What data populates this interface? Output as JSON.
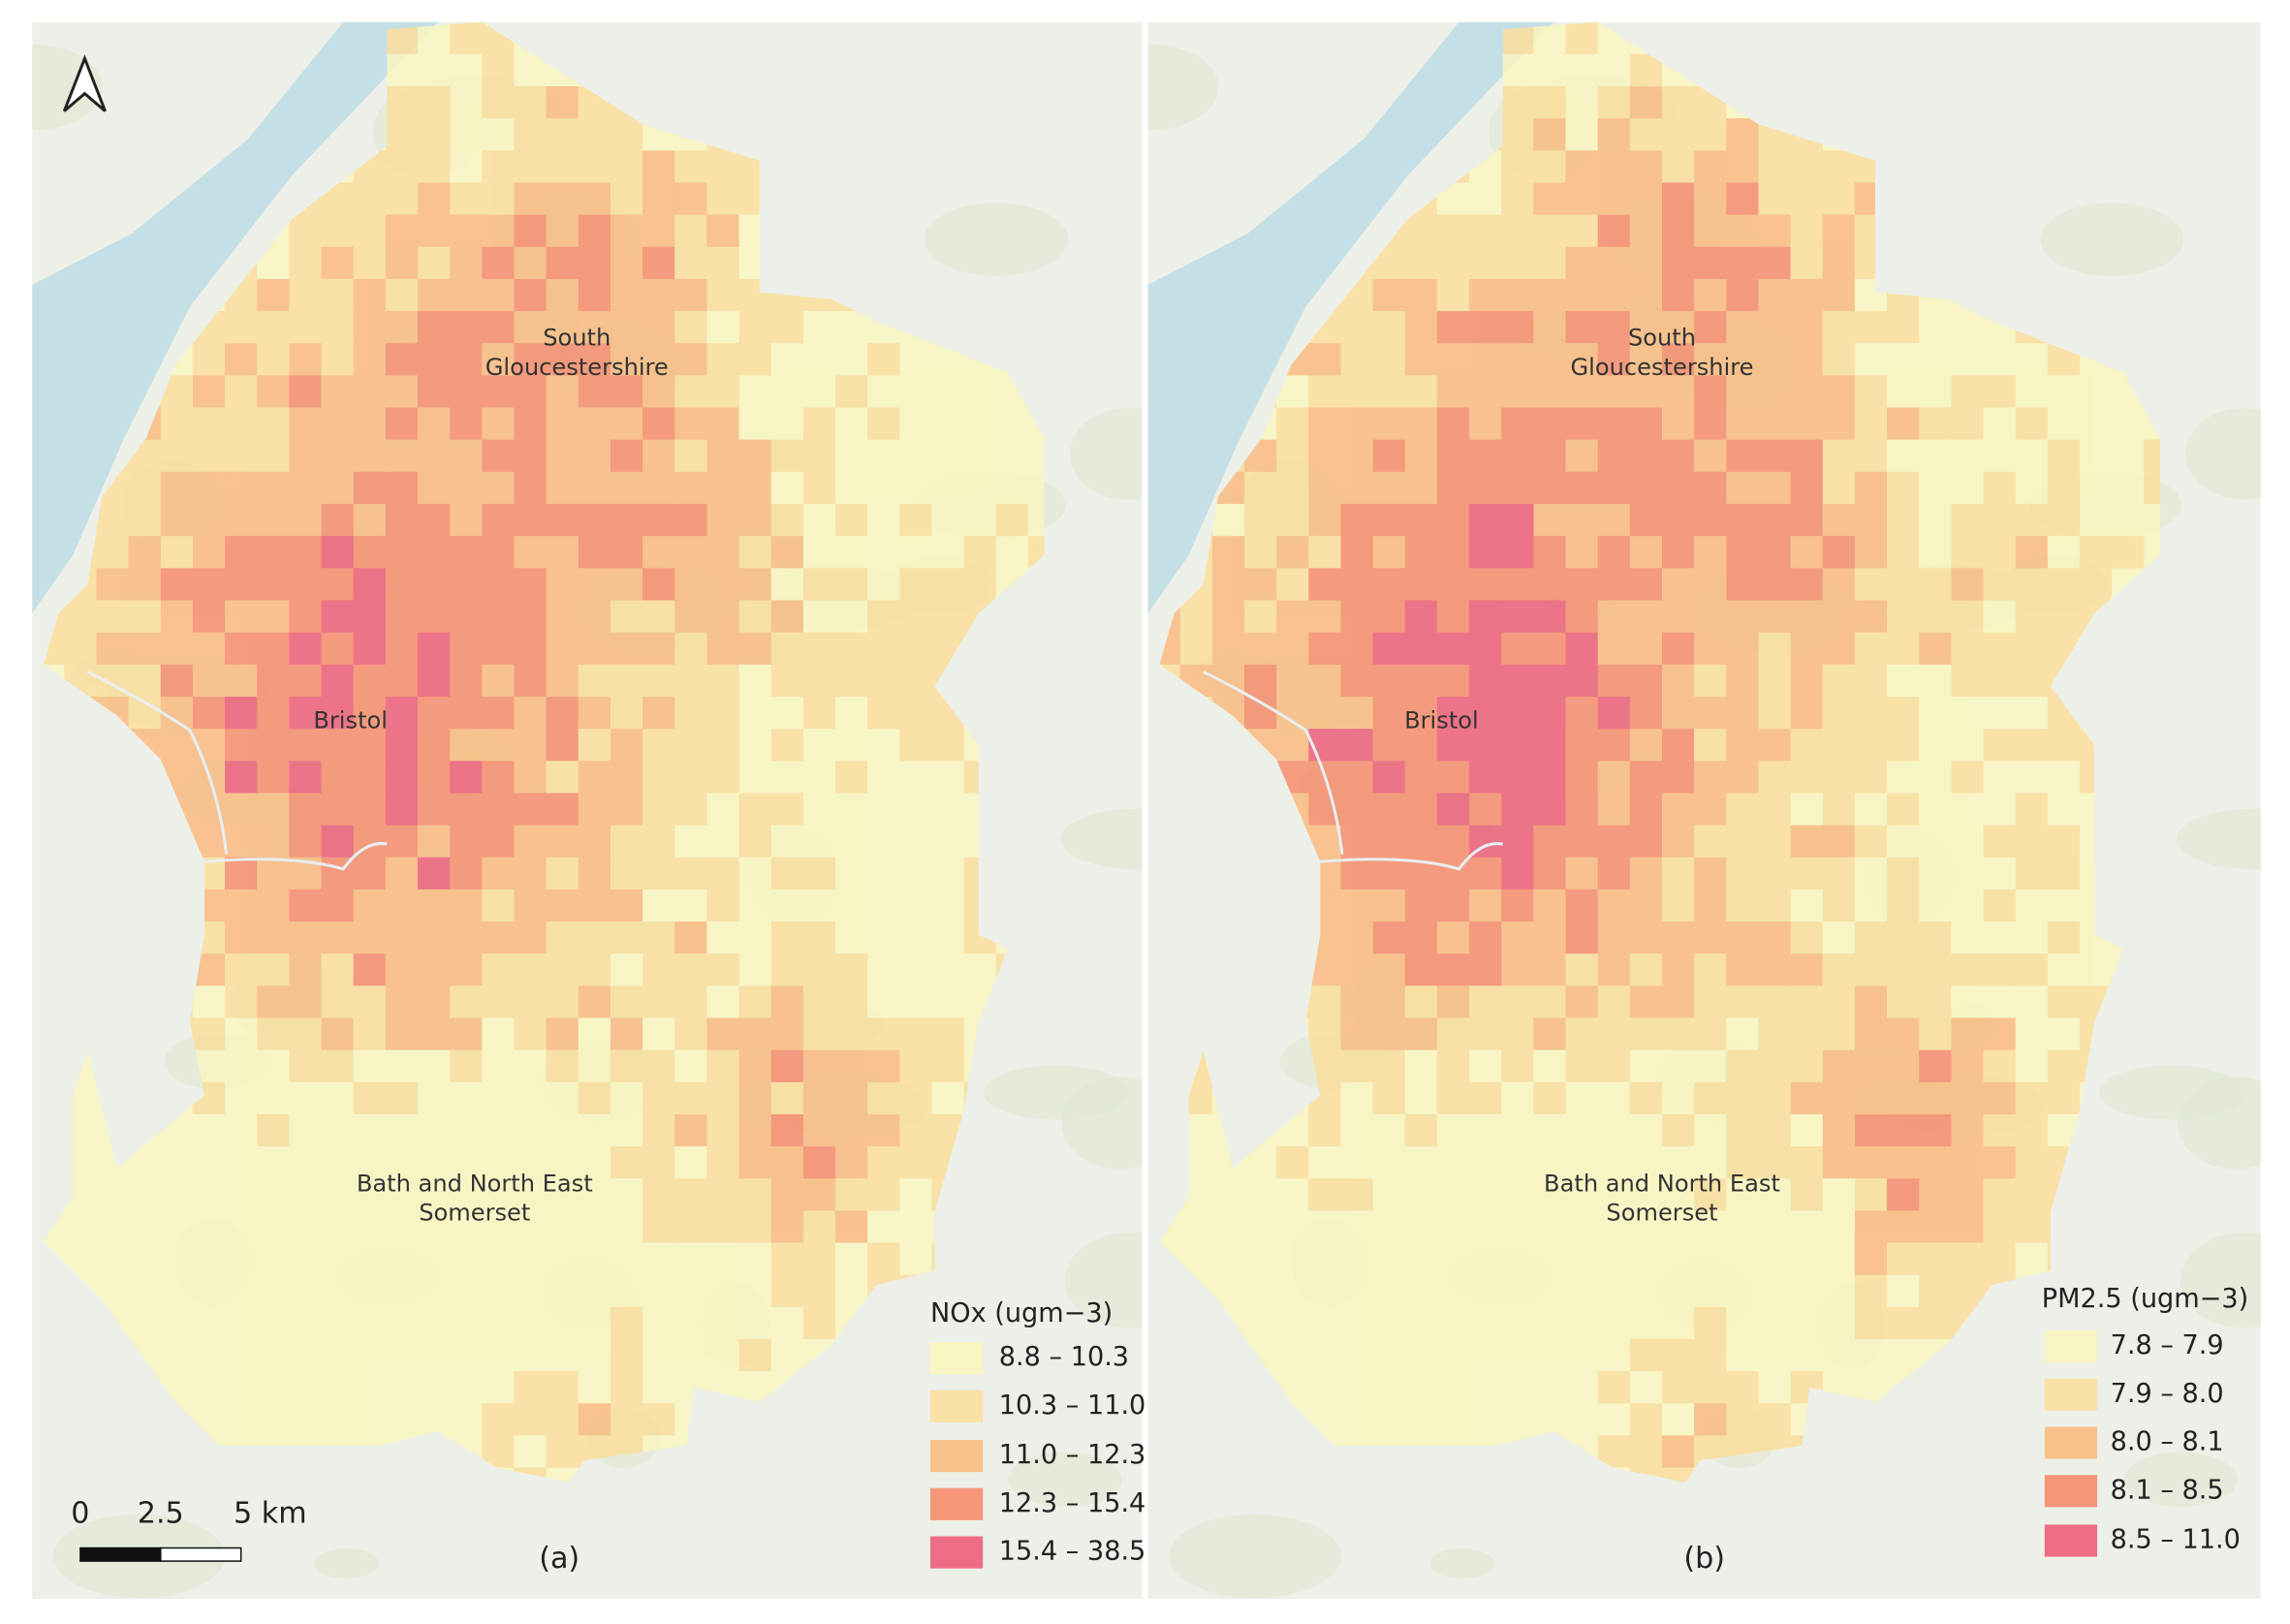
{
  "panels": [
    {
      "label": "(a)",
      "legend": {
        "title": "NOx (ugm−3)",
        "classes": [
          {
            "label": "8.8 – 10.3",
            "color": "#faf6c0"
          },
          {
            "label": "10.3 – 11.0",
            "color": "#fbdf9c"
          },
          {
            "label": "11.0 – 12.3",
            "color": "#f9bb80"
          },
          {
            "label": "12.3 – 15.4",
            "color": "#f68c6c"
          },
          {
            "label": "15.4 – 38.5",
            "color": "#ec5f79"
          }
        ]
      },
      "places": [
        {
          "lines": [
            "South",
            "Gloucestershire"
          ]
        },
        {
          "lines": [
            "Bristol"
          ]
        },
        {
          "lines": [
            "Bath and North East",
            "Somerset"
          ]
        }
      ]
    },
    {
      "label": "(b)",
      "legend": {
        "title": "PM2.5 (ugm−3)",
        "classes": [
          {
            "label": "7.8 – 7.9",
            "color": "#faf6c0"
          },
          {
            "label": "7.9 – 8.0",
            "color": "#fbdf9c"
          },
          {
            "label": "8.0 – 8.1",
            "color": "#f9bb80"
          },
          {
            "label": "8.1 – 8.5",
            "color": "#f68c6c"
          },
          {
            "label": "8.5 – 11.0",
            "color": "#ec5f79"
          }
        ]
      },
      "places": [
        {
          "lines": [
            "South",
            "Gloucestershire"
          ]
        },
        {
          "lines": [
            "Bristol"
          ]
        },
        {
          "lines": [
            "Bath and North East",
            "Somerset"
          ]
        }
      ]
    }
  ],
  "scale_bar": {
    "labels": [
      "0",
      "2.5",
      "5 km"
    ]
  }
}
